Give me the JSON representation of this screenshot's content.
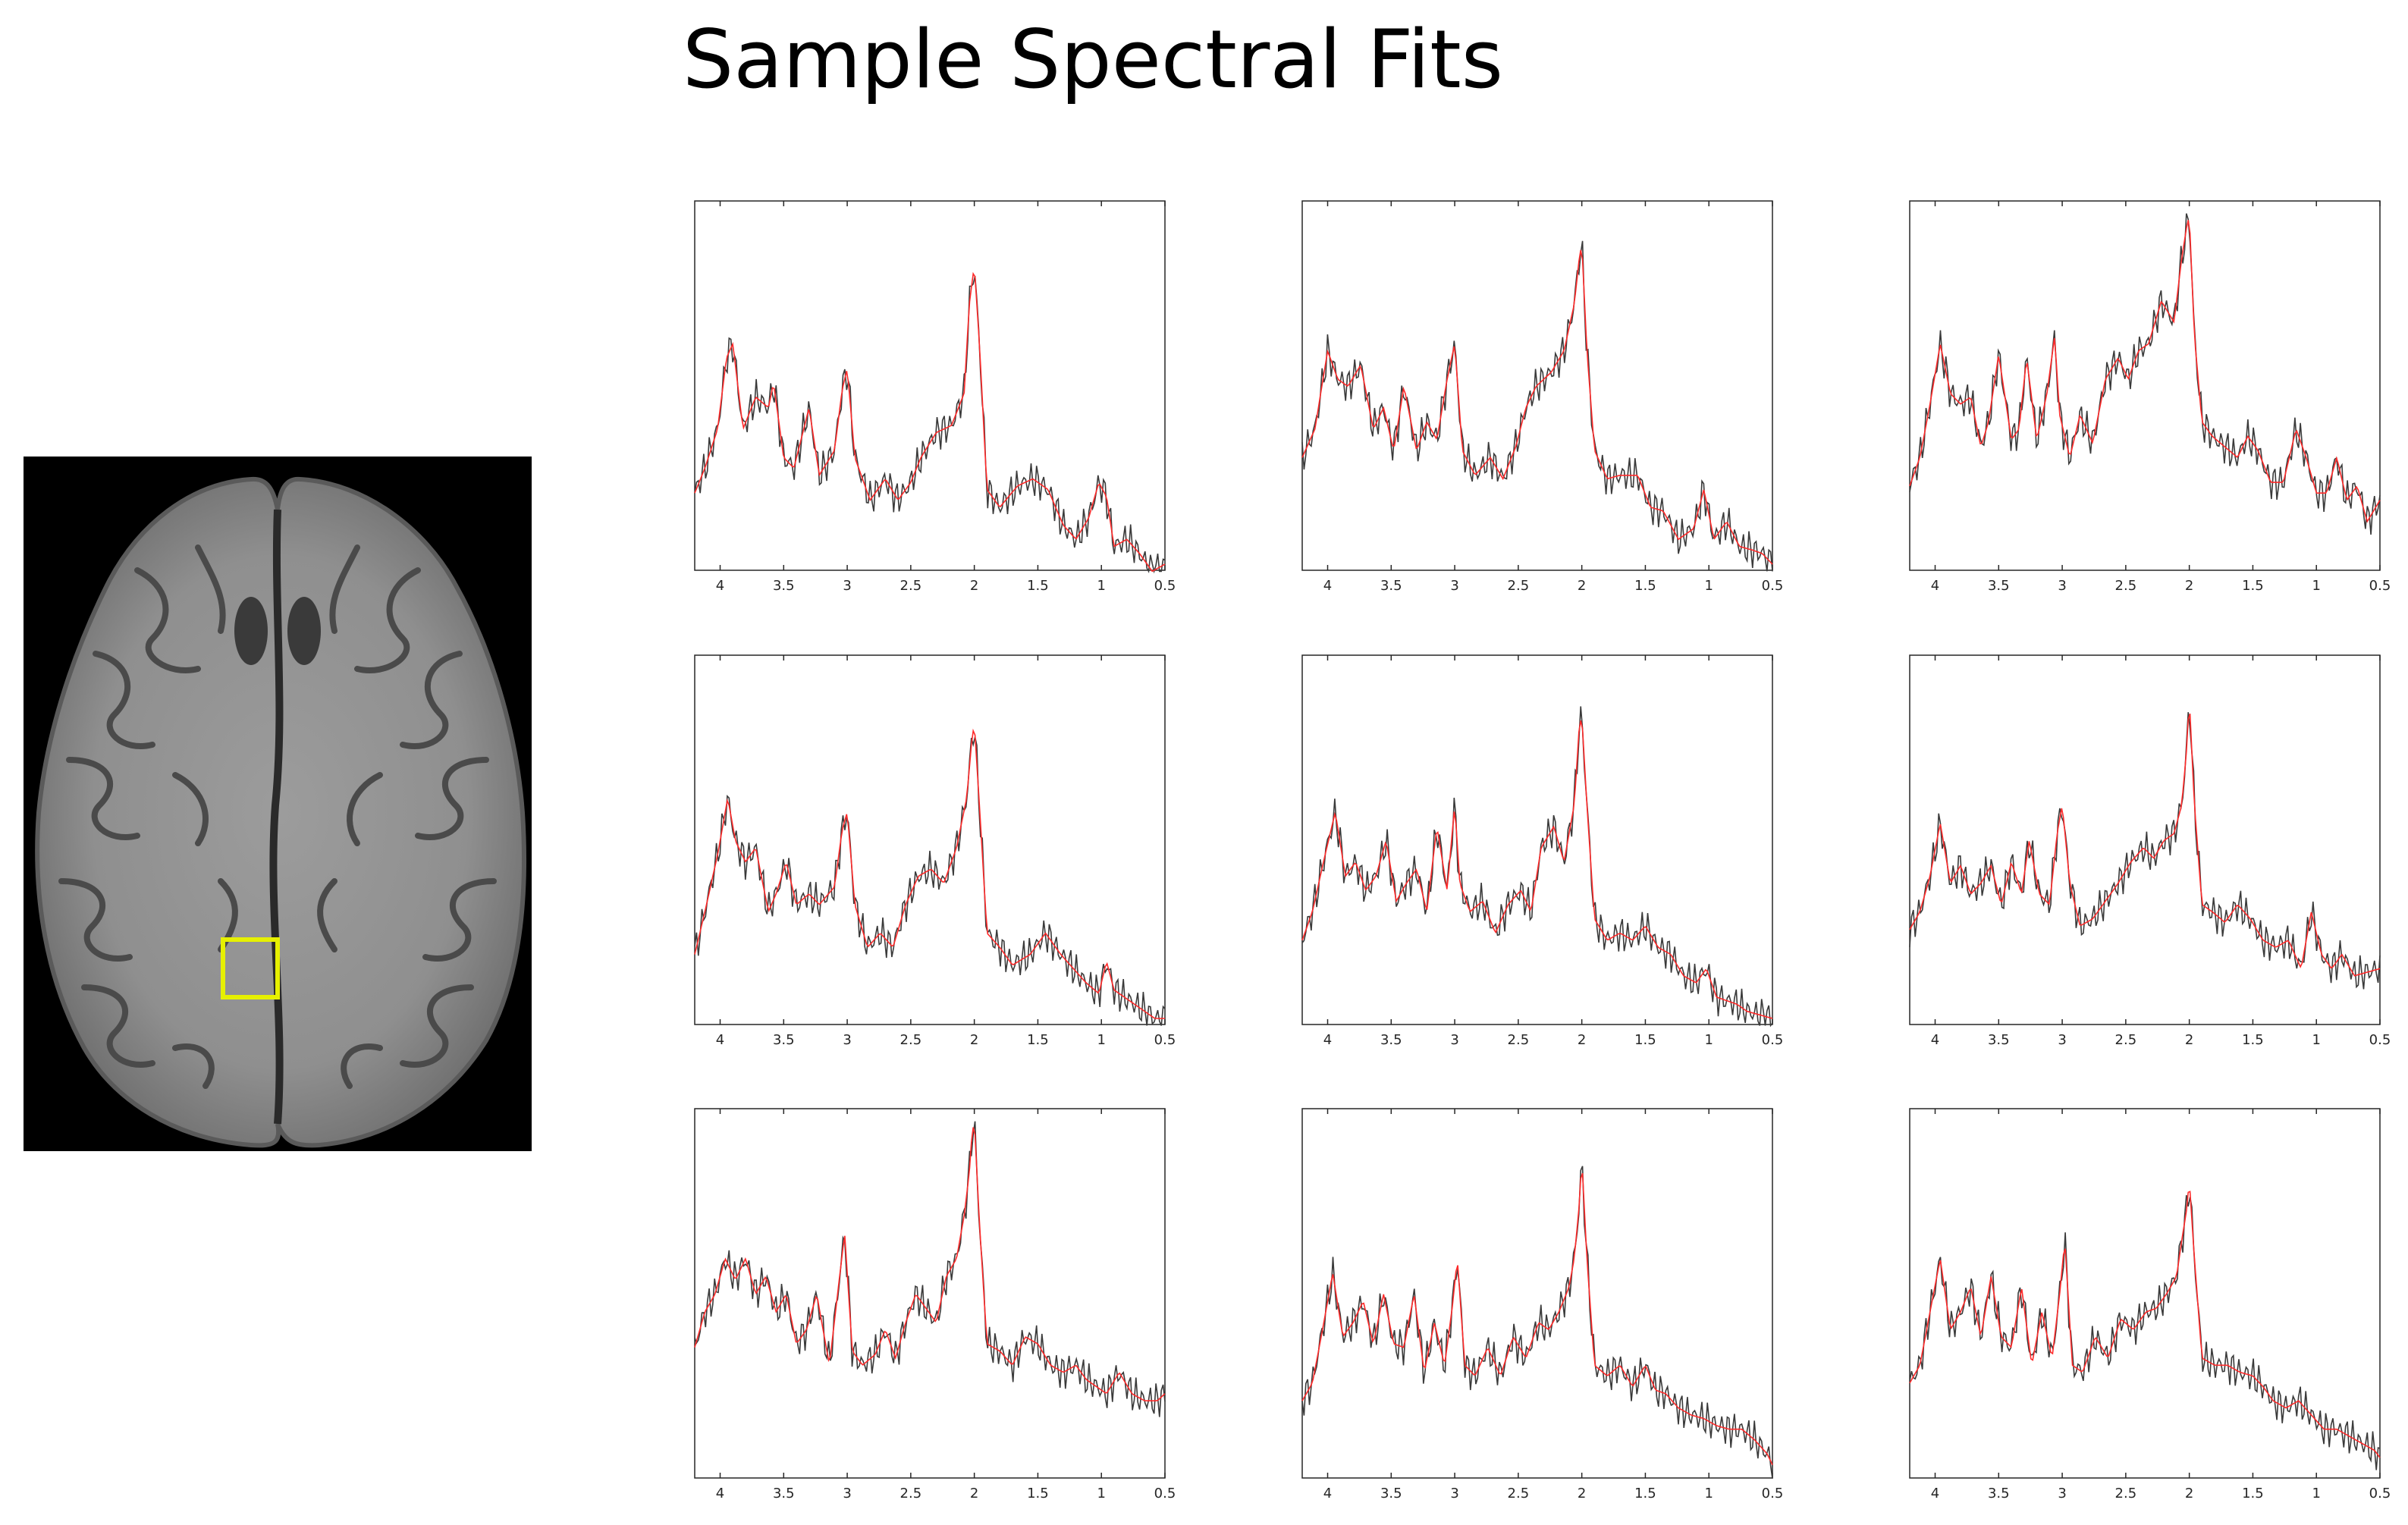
{
  "title": "Sample Spectral Fits",
  "colors": {
    "measured": "#3a3a3a",
    "fit": "#ff2a2a",
    "roi_box": "#e6f000",
    "axes": "#262626"
  },
  "chart_data": [
    {
      "type": "line",
      "xlim": [
        4.2,
        0.5
      ],
      "x_reversed": true,
      "ticks": [
        "4",
        "3.5",
        "3",
        "2.5",
        "2",
        "1.5",
        "1",
        "0.5"
      ],
      "series": [
        {
          "x": [
            4.2,
            4.12,
            4.02,
            3.95,
            3.9,
            3.82,
            3.72,
            3.62,
            3.58,
            3.5,
            3.42,
            3.3,
            3.22,
            3.1,
            3.04,
            3.0,
            2.94,
            2.82,
            2.7,
            2.6,
            2.5,
            2.42,
            2.3,
            2.18,
            2.08,
            2.04,
            2.0,
            1.96,
            1.9,
            1.8,
            1.66,
            1.54,
            1.42,
            1.3,
            1.2,
            1.1,
            1.02,
            0.96,
            0.9,
            0.8,
            0.7,
            0.6,
            0.5
          ],
          "y": [
            0.2,
            0.27,
            0.38,
            0.58,
            0.62,
            0.38,
            0.47,
            0.44,
            0.51,
            0.3,
            0.27,
            0.44,
            0.25,
            0.32,
            0.49,
            0.55,
            0.3,
            0.18,
            0.24,
            0.18,
            0.23,
            0.3,
            0.37,
            0.39,
            0.48,
            0.73,
            0.84,
            0.62,
            0.21,
            0.16,
            0.22,
            0.24,
            0.21,
            0.11,
            0.07,
            0.13,
            0.23,
            0.19,
            0.05,
            0.07,
            0.03,
            -0.02,
            0.0
          ]
        }
      ]
    },
    {
      "type": "line",
      "xlim": [
        4.2,
        0.5
      ],
      "x_reversed": true,
      "ticks": [
        "4",
        "3.5",
        "3",
        "2.5",
        "2",
        "1.5",
        "1",
        "0.5"
      ],
      "series": [
        {
          "x": [
            4.2,
            4.1,
            4.0,
            3.92,
            3.84,
            3.74,
            3.64,
            3.56,
            3.48,
            3.4,
            3.3,
            3.22,
            3.14,
            3.06,
            3.0,
            2.94,
            2.84,
            2.72,
            2.62,
            2.52,
            2.44,
            2.36,
            2.24,
            2.14,
            2.06,
            2.02,
            2.0,
            1.96,
            1.9,
            1.8,
            1.7,
            1.56,
            1.46,
            1.36,
            1.24,
            1.12,
            1.04,
            0.96,
            0.86,
            0.76,
            0.66,
            0.58,
            0.5
          ],
          "y": [
            0.3,
            0.38,
            0.6,
            0.52,
            0.5,
            0.56,
            0.38,
            0.44,
            0.32,
            0.5,
            0.32,
            0.4,
            0.35,
            0.52,
            0.62,
            0.32,
            0.25,
            0.3,
            0.24,
            0.33,
            0.44,
            0.5,
            0.54,
            0.6,
            0.73,
            0.86,
            0.9,
            0.6,
            0.32,
            0.24,
            0.25,
            0.25,
            0.16,
            0.15,
            0.07,
            0.1,
            0.21,
            0.07,
            0.12,
            0.05,
            0.04,
            0.03,
            0.0
          ]
        }
      ]
    },
    {
      "type": "line",
      "xlim": [
        4.2,
        0.5
      ],
      "x_reversed": true,
      "ticks": [
        "4",
        "3.5",
        "3",
        "2.5",
        "2",
        "1.5",
        "1",
        "0.5"
      ],
      "series": [
        {
          "x": [
            4.2,
            4.12,
            4.04,
            3.96,
            3.88,
            3.8,
            3.72,
            3.64,
            3.58,
            3.5,
            3.4,
            3.34,
            3.28,
            3.2,
            3.12,
            3.06,
            3.02,
            2.94,
            2.86,
            2.76,
            2.66,
            2.56,
            2.48,
            2.4,
            2.32,
            2.22,
            2.12,
            2.06,
            2.02,
            2.0,
            1.96,
            1.9,
            1.82,
            1.72,
            1.62,
            1.54,
            1.46,
            1.36,
            1.26,
            1.16,
            1.08,
            1.0,
            0.92,
            0.84,
            0.76,
            0.68,
            0.6,
            0.5
          ],
          "y": [
            0.22,
            0.3,
            0.45,
            0.62,
            0.48,
            0.45,
            0.47,
            0.33,
            0.4,
            0.59,
            0.35,
            0.38,
            0.58,
            0.35,
            0.48,
            0.64,
            0.42,
            0.3,
            0.42,
            0.34,
            0.52,
            0.58,
            0.52,
            0.6,
            0.62,
            0.74,
            0.68,
            0.86,
            0.95,
            0.98,
            0.64,
            0.4,
            0.36,
            0.33,
            0.3,
            0.36,
            0.32,
            0.23,
            0.23,
            0.38,
            0.3,
            0.2,
            0.2,
            0.3,
            0.18,
            0.22,
            0.12,
            0.18
          ]
        }
      ]
    },
    {
      "type": "line",
      "xlim": [
        4.2,
        0.5
      ],
      "x_reversed": true,
      "ticks": [
        "4",
        "3.5",
        "3",
        "2.5",
        "2",
        "1.5",
        "1",
        "0.5"
      ],
      "series": [
        {
          "x": [
            4.2,
            4.12,
            4.02,
            3.94,
            3.88,
            3.8,
            3.72,
            3.62,
            3.56,
            3.48,
            3.4,
            3.3,
            3.22,
            3.1,
            3.04,
            3.0,
            2.94,
            2.84,
            2.74,
            2.64,
            2.54,
            2.44,
            2.34,
            2.24,
            2.14,
            2.06,
            2.02,
            2.0,
            1.96,
            1.9,
            1.8,
            1.7,
            1.56,
            1.44,
            1.32,
            1.22,
            1.12,
            1.02,
            0.96,
            0.9,
            0.82,
            0.74,
            0.66,
            0.58,
            0.5
          ],
          "y": [
            0.18,
            0.3,
            0.46,
            0.62,
            0.5,
            0.44,
            0.48,
            0.3,
            0.35,
            0.44,
            0.32,
            0.35,
            0.32,
            0.37,
            0.53,
            0.58,
            0.32,
            0.2,
            0.24,
            0.2,
            0.32,
            0.4,
            0.42,
            0.38,
            0.48,
            0.62,
            0.78,
            0.83,
            0.6,
            0.24,
            0.2,
            0.15,
            0.18,
            0.24,
            0.18,
            0.14,
            0.1,
            0.07,
            0.16,
            0.08,
            0.06,
            0.04,
            0.02,
            0.0,
            0.0
          ]
        }
      ]
    },
    {
      "type": "line",
      "xlim": [
        4.2,
        0.5
      ],
      "x_reversed": true,
      "ticks": [
        "4",
        "3.5",
        "3",
        "2.5",
        "2",
        "1.5",
        "1",
        "0.5"
      ],
      "series": [
        {
          "x": [
            4.2,
            4.12,
            4.02,
            3.94,
            3.86,
            3.78,
            3.7,
            3.62,
            3.54,
            3.46,
            3.38,
            3.3,
            3.22,
            3.14,
            3.06,
            3.0,
            2.96,
            2.88,
            2.78,
            2.68,
            2.58,
            2.48,
            2.4,
            2.32,
            2.22,
            2.14,
            2.06,
            2.02,
            2.0,
            1.96,
            1.9,
            1.8,
            1.7,
            1.6,
            1.5,
            1.4,
            1.3,
            1.2,
            1.1,
            1.02,
            0.94,
            0.86,
            0.78,
            0.7,
            0.6,
            0.5
          ],
          "y": [
            0.22,
            0.3,
            0.46,
            0.58,
            0.4,
            0.44,
            0.36,
            0.4,
            0.5,
            0.33,
            0.38,
            0.42,
            0.3,
            0.54,
            0.36,
            0.6,
            0.38,
            0.3,
            0.33,
            0.24,
            0.32,
            0.36,
            0.3,
            0.48,
            0.54,
            0.44,
            0.6,
            0.82,
            0.85,
            0.6,
            0.28,
            0.22,
            0.24,
            0.22,
            0.26,
            0.2,
            0.18,
            0.12,
            0.1,
            0.14,
            0.06,
            0.05,
            0.04,
            0.02,
            0.01,
            0.0
          ]
        }
      ]
    },
    {
      "type": "line",
      "xlim": [
        4.2,
        0.5
      ],
      "x_reversed": true,
      "ticks": [
        "4",
        "3.5",
        "3",
        "2.5",
        "2",
        "1.5",
        "1",
        "0.5"
      ],
      "series": [
        {
          "x": [
            4.2,
            4.12,
            4.04,
            3.96,
            3.88,
            3.8,
            3.72,
            3.64,
            3.56,
            3.48,
            3.4,
            3.32,
            3.26,
            3.18,
            3.1,
            3.04,
            3.0,
            2.94,
            2.86,
            2.76,
            2.66,
            2.56,
            2.46,
            2.36,
            2.28,
            2.2,
            2.12,
            2.06,
            2.02,
            2.0,
            1.96,
            1.9,
            1.82,
            1.72,
            1.62,
            1.52,
            1.42,
            1.32,
            1.22,
            1.12,
            1.04,
            0.96,
            0.88,
            0.8,
            0.7,
            0.6,
            0.5
          ],
          "y": [
            0.25,
            0.3,
            0.4,
            0.55,
            0.38,
            0.43,
            0.35,
            0.38,
            0.43,
            0.32,
            0.44,
            0.35,
            0.5,
            0.35,
            0.32,
            0.52,
            0.6,
            0.38,
            0.26,
            0.28,
            0.33,
            0.38,
            0.44,
            0.48,
            0.45,
            0.5,
            0.52,
            0.6,
            0.76,
            0.9,
            0.6,
            0.32,
            0.3,
            0.27,
            0.32,
            0.28,
            0.22,
            0.2,
            0.22,
            0.14,
            0.3,
            0.18,
            0.14,
            0.18,
            0.12,
            0.13,
            0.14
          ]
        }
      ]
    },
    {
      "type": "line",
      "xlim": [
        4.2,
        0.5
      ],
      "x_reversed": true,
      "ticks": [
        "4",
        "3.5",
        "3",
        "2.5",
        "2",
        "1.5",
        "1",
        "0.5"
      ],
      "series": [
        {
          "x": [
            4.2,
            4.12,
            4.04,
            3.96,
            3.88,
            3.8,
            3.72,
            3.64,
            3.56,
            3.48,
            3.4,
            3.32,
            3.24,
            3.14,
            3.06,
            3.02,
            2.96,
            2.88,
            2.78,
            2.7,
            2.62,
            2.54,
            2.46,
            2.38,
            2.3,
            2.22,
            2.14,
            2.08,
            2.04,
            2.02,
            2.0,
            1.96,
            1.9,
            1.8,
            1.7,
            1.6,
            1.5,
            1.4,
            1.3,
            1.2,
            1.12,
            1.04,
            0.96,
            0.86,
            0.76,
            0.66,
            0.56,
            0.5
          ],
          "y": [
            0.35,
            0.45,
            0.5,
            0.6,
            0.54,
            0.6,
            0.5,
            0.55,
            0.45,
            0.5,
            0.36,
            0.4,
            0.5,
            0.3,
            0.55,
            0.67,
            0.34,
            0.3,
            0.33,
            0.4,
            0.32,
            0.42,
            0.5,
            0.46,
            0.42,
            0.55,
            0.6,
            0.72,
            0.84,
            0.94,
            0.99,
            0.7,
            0.36,
            0.34,
            0.3,
            0.38,
            0.36,
            0.3,
            0.28,
            0.3,
            0.26,
            0.24,
            0.22,
            0.28,
            0.22,
            0.2,
            0.2,
            0.22
          ]
        }
      ]
    },
    {
      "type": "line",
      "xlim": [
        4.2,
        0.5
      ],
      "x_reversed": true,
      "ticks": [
        "4",
        "3.5",
        "3",
        "2.5",
        "2",
        "1.5",
        "1",
        "0.5"
      ],
      "series": [
        {
          "x": [
            4.2,
            4.12,
            4.04,
            3.96,
            3.88,
            3.8,
            3.72,
            3.64,
            3.56,
            3.48,
            3.4,
            3.32,
            3.24,
            3.16,
            3.08,
            3.02,
            2.98,
            2.92,
            2.84,
            2.74,
            2.64,
            2.54,
            2.44,
            2.34,
            2.26,
            2.18,
            2.1,
            2.06,
            2.02,
            2.0,
            1.96,
            1.9,
            1.8,
            1.7,
            1.6,
            1.5,
            1.42,
            1.34,
            1.24,
            1.14,
            1.04,
            0.94,
            0.84,
            0.74,
            0.64,
            0.54,
            0.5
          ],
          "y": [
            0.2,
            0.25,
            0.4,
            0.56,
            0.38,
            0.42,
            0.48,
            0.36,
            0.5,
            0.36,
            0.35,
            0.5,
            0.28,
            0.42,
            0.3,
            0.46,
            0.6,
            0.3,
            0.27,
            0.35,
            0.27,
            0.38,
            0.32,
            0.42,
            0.4,
            0.45,
            0.52,
            0.6,
            0.75,
            0.88,
            0.6,
            0.3,
            0.27,
            0.3,
            0.24,
            0.3,
            0.23,
            0.22,
            0.18,
            0.16,
            0.15,
            0.13,
            0.12,
            0.12,
            0.09,
            0.05,
            0.02
          ]
        }
      ]
    },
    {
      "type": "line",
      "xlim": [
        4.2,
        0.5
      ],
      "x_reversed": true,
      "ticks": [
        "4",
        "3.5",
        "3",
        "2.5",
        "2",
        "1.5",
        "1",
        "0.5"
      ],
      "series": [
        {
          "x": [
            4.2,
            4.12,
            4.04,
            3.96,
            3.88,
            3.8,
            3.72,
            3.64,
            3.56,
            3.48,
            3.4,
            3.32,
            3.24,
            3.16,
            3.08,
            3.02,
            2.98,
            2.92,
            2.84,
            2.74,
            2.64,
            2.54,
            2.44,
            2.34,
            2.26,
            2.18,
            2.1,
            2.06,
            2.02,
            2.0,
            1.96,
            1.9,
            1.8,
            1.7,
            1.6,
            1.5,
            1.42,
            1.34,
            1.24,
            1.14,
            1.04,
            0.94,
            0.84,
            0.74,
            0.64,
            0.54,
            0.5
          ],
          "y": [
            0.25,
            0.3,
            0.45,
            0.6,
            0.4,
            0.45,
            0.52,
            0.38,
            0.55,
            0.38,
            0.35,
            0.52,
            0.3,
            0.45,
            0.32,
            0.5,
            0.65,
            0.3,
            0.28,
            0.38,
            0.32,
            0.43,
            0.4,
            0.45,
            0.46,
            0.5,
            0.55,
            0.65,
            0.74,
            0.82,
            0.6,
            0.32,
            0.3,
            0.3,
            0.28,
            0.27,
            0.24,
            0.2,
            0.18,
            0.2,
            0.16,
            0.12,
            0.12,
            0.1,
            0.08,
            0.06,
            0.04
          ]
        }
      ]
    }
  ]
}
